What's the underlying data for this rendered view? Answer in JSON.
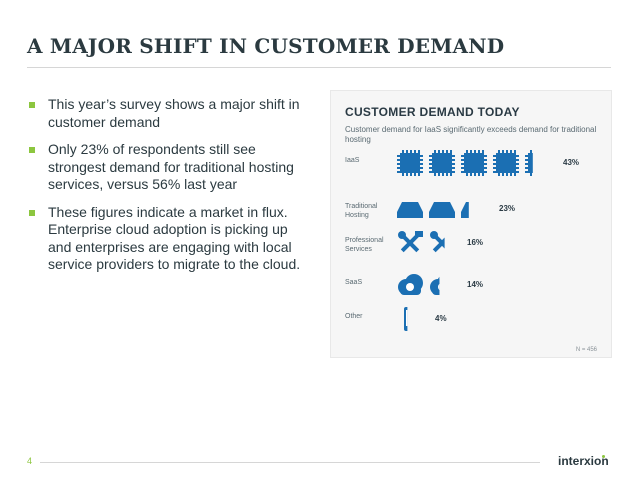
{
  "title": "A MAJOR SHIFT IN CUSTOMER DEMAND",
  "bullets": [
    "This year’s survey shows a major shift in customer demand",
    "Only 23% of respondents still see strongest demand for traditional hosting services, versus 56% last year",
    "These figures indicate a market in flux. Enterprise cloud adoption is picking up and enterprises are engaging with local service providers to migrate to the cloud."
  ],
  "infographic": {
    "title": "CUSTOMER DEMAND TODAY",
    "subtitle": "Customer demand for IaaS significantly exceeds demand for traditional hosting",
    "sample_size": "N = 456",
    "accent_color": "#1b6fb3"
  },
  "chart_data": {
    "type": "bar",
    "title": "CUSTOMER DEMAND TODAY",
    "subtitle": "Customer demand for IaaS significantly exceeds demand for traditional hosting",
    "categories": [
      "IaaS",
      "Traditional Hosting",
      "Professional Services",
      "SaaS",
      "Other"
    ],
    "values": [
      43,
      23,
      16,
      14,
      4
    ],
    "value_labels": [
      "43%",
      "23%",
      "16%",
      "14%",
      "4%"
    ],
    "icons": [
      "chip-icon",
      "server-icon",
      "tools-icon",
      "cloud-sync-icon",
      "mobile-icon"
    ]
  },
  "footer": {
    "page_number": "4",
    "logo_text": "interxion"
  }
}
